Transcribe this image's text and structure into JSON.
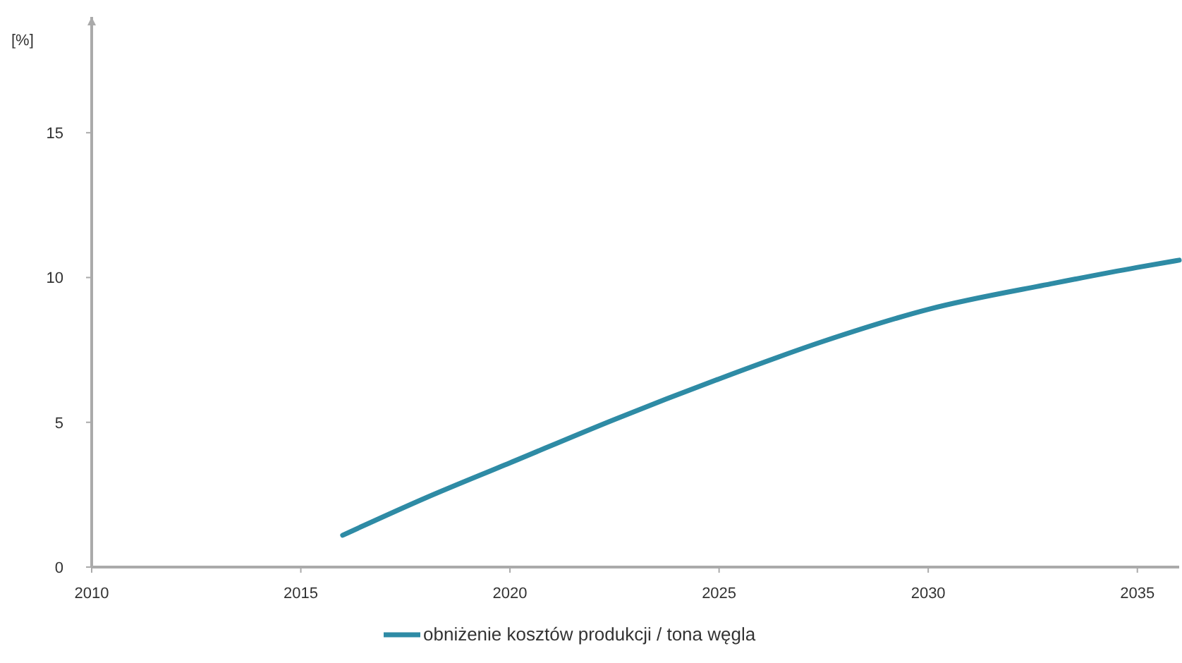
{
  "chart_data": {
    "type": "line",
    "ylabel": "[%]",
    "x": [
      2016,
      2018,
      2020,
      2022.5,
      2025,
      2027.5,
      2030,
      2033,
      2035,
      2036
    ],
    "series": [
      {
        "name": "obniżenie kosztów produkcji / tona węgla",
        "color": "#2e8ba5",
        "values": [
          1.1,
          2.4,
          3.6,
          5.1,
          6.5,
          7.8,
          8.9,
          9.8,
          10.35,
          10.6
        ]
      }
    ],
    "xlim": [
      2010,
      2036
    ],
    "xticks": [
      2010,
      2015,
      2020,
      2025,
      2030,
      2035
    ],
    "ylim": [
      0,
      19
    ],
    "yticks": [
      0,
      5,
      10,
      15
    ],
    "grid": false,
    "legend": "bottom",
    "marker": "none",
    "line_style": "solid"
  }
}
